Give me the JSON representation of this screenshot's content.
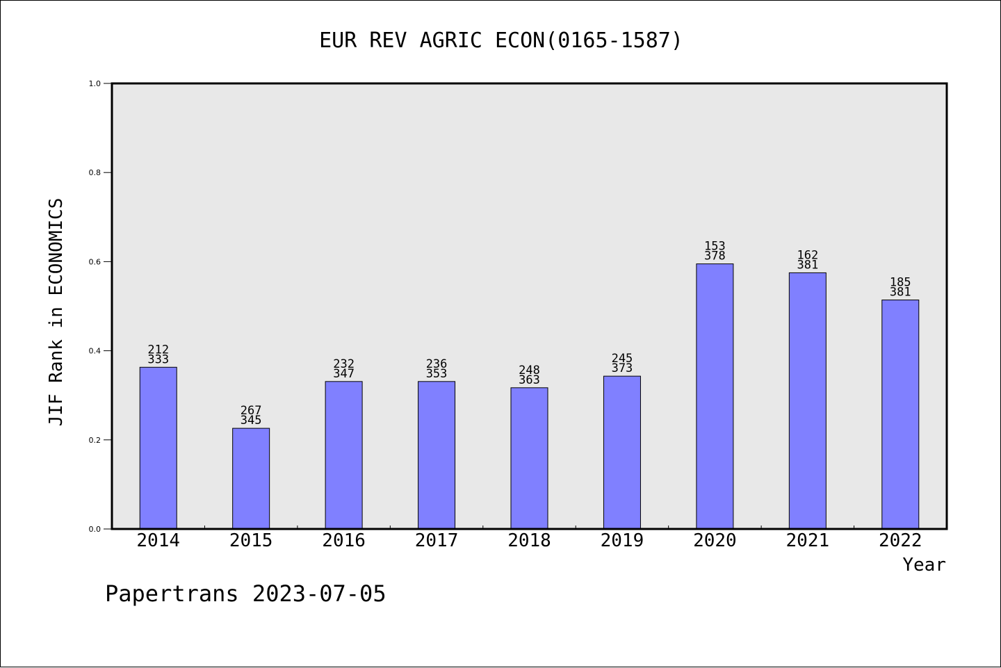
{
  "chart_data": {
    "type": "bar",
    "title": "EUR REV AGRIC ECON(0165-1587)",
    "xlabel": "Year",
    "ylabel": "JIF Rank in ECONOMICS",
    "ylim": [
      0,
      1.0
    ],
    "yticks": [
      "0.0",
      "0.2",
      "0.4",
      "0.6",
      "0.8",
      "1.0"
    ],
    "categories": [
      "2014",
      "2015",
      "2016",
      "2017",
      "2018",
      "2019",
      "2020",
      "2021",
      "2022"
    ],
    "values": [
      0.363,
      0.226,
      0.331,
      0.331,
      0.317,
      0.343,
      0.595,
      0.575,
      0.514
    ],
    "rank_labels": [
      "212",
      "267",
      "232",
      "236",
      "248",
      "245",
      "153",
      "162",
      "185"
    ],
    "total_labels": [
      "333",
      "345",
      "347",
      "353",
      "363",
      "373",
      "378",
      "381",
      "381"
    ],
    "grid": false,
    "colors": {
      "bar": "#8080ff",
      "plot_bg": "#e8e8e8"
    }
  },
  "footer": "Papertrans 2023-07-05"
}
